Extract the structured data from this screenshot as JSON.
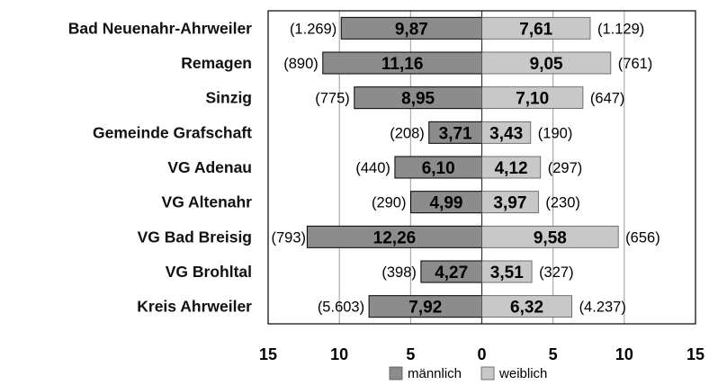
{
  "chart_data": {
    "type": "bar",
    "orientation": "horizontal-diverging",
    "categories": [
      "Bad Neuenahr-Ahrweiler",
      "Remagen",
      "Sinzig",
      "Gemeinde Grafschaft",
      "VG Adenau",
      "VG Altenahr",
      "VG Bad Breisig",
      "VG Brohltal",
      "Kreis Ahrweiler"
    ],
    "series": [
      {
        "name": "männlich",
        "color": "#8c8c8c",
        "direction": "left",
        "values": [
          9.87,
          11.16,
          8.95,
          3.71,
          6.1,
          4.99,
          12.26,
          4.27,
          7.92
        ],
        "labels": [
          "9,87",
          "11,16",
          "8,95",
          "3,71",
          "6,10",
          "4,99",
          "12,26",
          "4,27",
          "7,92"
        ],
        "counts": [
          "(1.269)",
          "(890)",
          "(775)",
          "(208)",
          "(440)",
          "(290)",
          "(793)",
          "(398)",
          "(5.603)"
        ]
      },
      {
        "name": "weiblich",
        "color": "#c8c8c8",
        "direction": "right",
        "values": [
          7.61,
          9.05,
          7.1,
          3.43,
          4.12,
          3.97,
          9.58,
          3.51,
          6.32
        ],
        "labels": [
          "7,61",
          "9,05",
          "7,10",
          "3,43",
          "4,12",
          "3,97",
          "9,58",
          "3,51",
          "6,32"
        ],
        "counts": [
          "(1.129)",
          "(761)",
          "(647)",
          "(190)",
          "(297)",
          "(230)",
          "(656)",
          "(327)",
          "(4.237)"
        ]
      }
    ],
    "xlim": [
      -15,
      15
    ],
    "xticks": [
      -15,
      -10,
      -5,
      0,
      5,
      10,
      15
    ],
    "xtick_labels": [
      "15",
      "10",
      "5",
      "0",
      "5",
      "10",
      "15"
    ],
    "grid": "vertical",
    "legend_position": "bottom-center",
    "title": "",
    "xlabel": "",
    "ylabel": ""
  }
}
